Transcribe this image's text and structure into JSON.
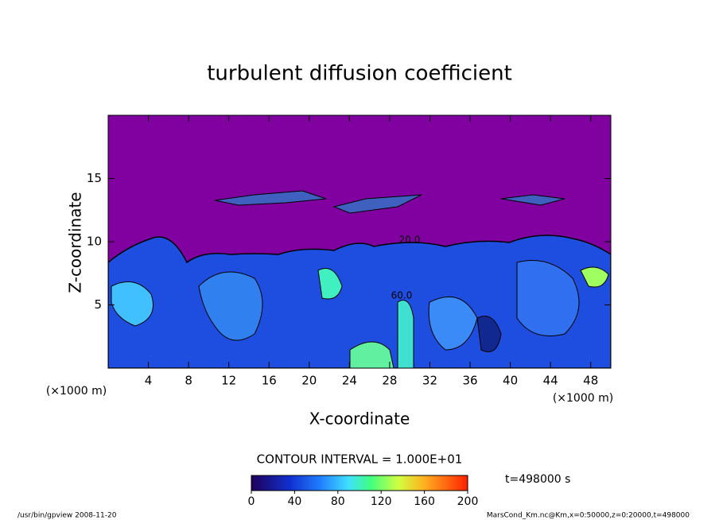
{
  "chart_data": {
    "type": "contour",
    "title": "turbulent diffusion coefficient",
    "x_label": "X-coordinate",
    "y_label": "Z-coordinate",
    "x_unit": "(×1000 m)",
    "y_unit": "(×1000 m)",
    "xlim": [
      0,
      50
    ],
    "xticks": [
      4,
      8,
      12,
      16,
      20,
      24,
      28,
      32,
      36,
      40,
      44,
      48
    ],
    "ylim": [
      0,
      20
    ],
    "yticks": [
      5,
      10,
      15
    ],
    "contour_labels": [
      "20.0",
      "60.0"
    ],
    "contour_interval": "CONTOUR INTERVAL = 1.000E+01",
    "colorbar": {
      "lim": [
        0,
        200
      ],
      "ticks": [
        0,
        40,
        80,
        120,
        160,
        200
      ]
    },
    "time_label": "t=498000 s",
    "footer_left": "/usr/bin/gpview  2008-11-20",
    "footer_right": "MarsCond_Km.nc@Km,x=0:50000,z=0:20000,t=498000"
  }
}
